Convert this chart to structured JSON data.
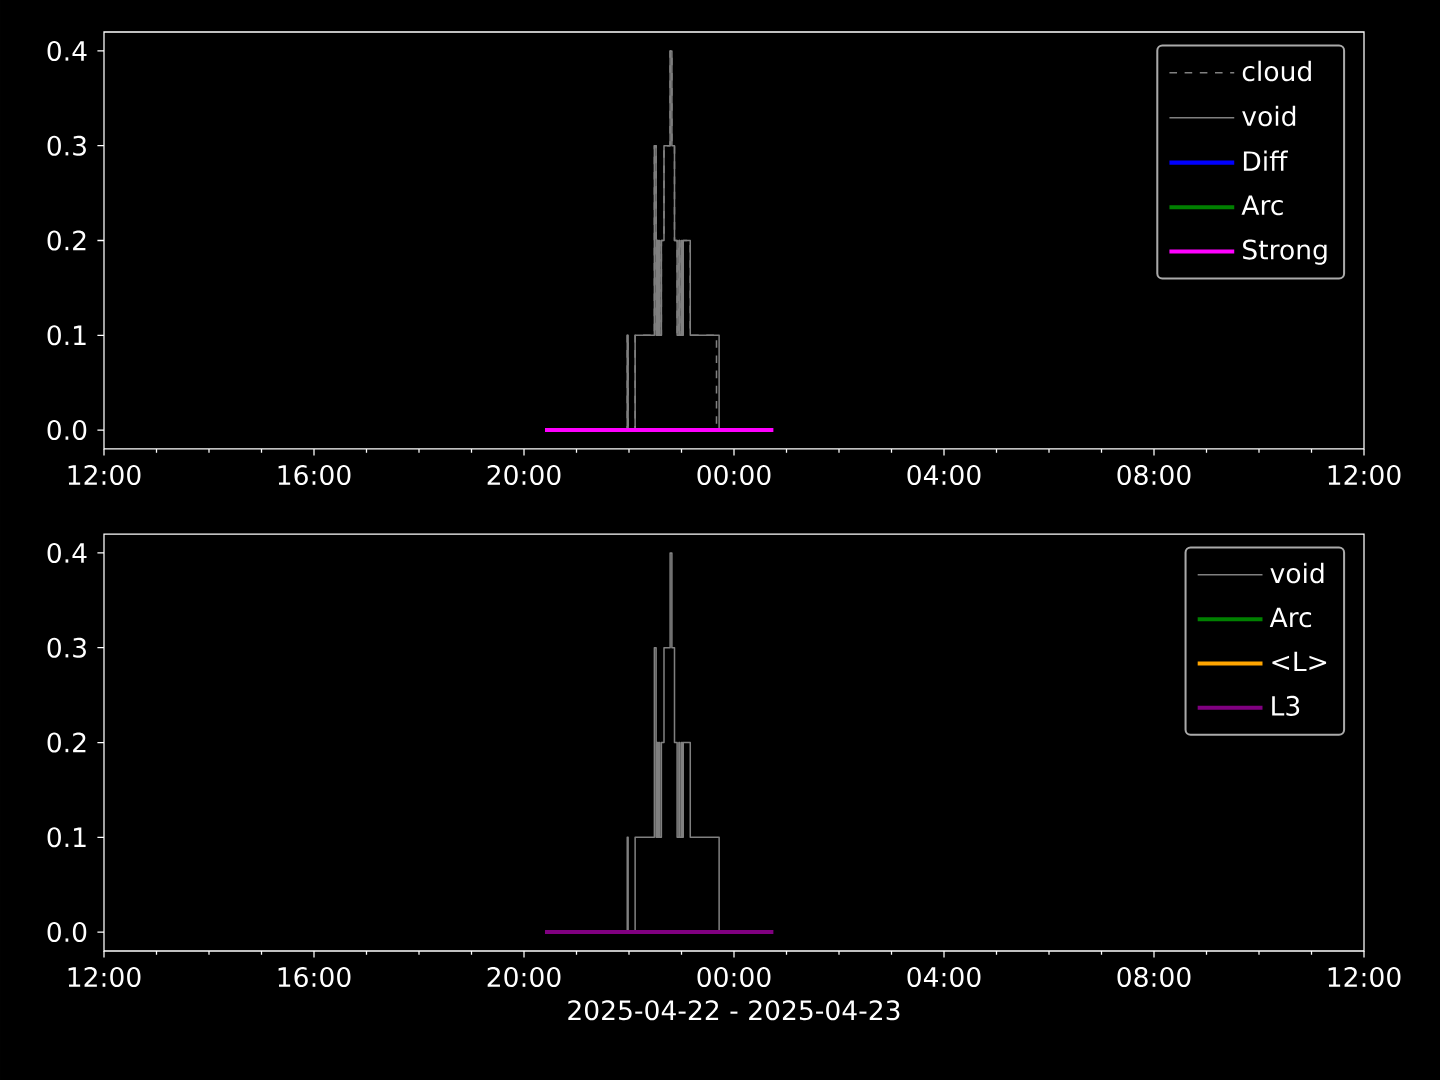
{
  "chart_data": [
    {
      "type": "step",
      "xlim": [
        "2025-04-22T12:00",
        "2025-04-23T12:00"
      ],
      "ylim": [
        -0.02,
        0.42
      ],
      "xticks": [
        {
          "value": "2025-04-22T12:00",
          "label": "12:00"
        },
        {
          "value": "2025-04-22T13:00",
          "label": null
        },
        {
          "value": "2025-04-22T14:00",
          "label": null
        },
        {
          "value": "2025-04-22T15:00",
          "label": null
        },
        {
          "value": "2025-04-22T16:00",
          "label": "16:00"
        },
        {
          "value": "2025-04-22T17:00",
          "label": null
        },
        {
          "value": "2025-04-22T18:00",
          "label": null
        },
        {
          "value": "2025-04-22T19:00",
          "label": null
        },
        {
          "value": "2025-04-22T20:00",
          "label": "20:00"
        },
        {
          "value": "2025-04-22T21:00",
          "label": null
        },
        {
          "value": "2025-04-22T22:00",
          "label": null
        },
        {
          "value": "2025-04-22T23:00",
          "label": null
        },
        {
          "value": "2025-04-23T00:00",
          "label": "00:00"
        },
        {
          "value": "2025-04-23T01:00",
          "label": null
        },
        {
          "value": "2025-04-23T02:00",
          "label": null
        },
        {
          "value": "2025-04-23T03:00",
          "label": null
        },
        {
          "value": "2025-04-23T04:00",
          "label": "04:00"
        },
        {
          "value": "2025-04-23T05:00",
          "label": null
        },
        {
          "value": "2025-04-23T06:00",
          "label": null
        },
        {
          "value": "2025-04-23T07:00",
          "label": null
        },
        {
          "value": "2025-04-23T08:00",
          "label": "08:00"
        },
        {
          "value": "2025-04-23T09:00",
          "label": null
        },
        {
          "value": "2025-04-23T10:00",
          "label": null
        },
        {
          "value": "2025-04-23T11:00",
          "label": null
        },
        {
          "value": "2025-04-23T12:00",
          "label": "12:00"
        }
      ],
      "yticks": [
        {
          "value": 0,
          "label": "0.0"
        },
        {
          "value": 0.1,
          "label": "0.1"
        },
        {
          "value": 0.2,
          "label": "0.2"
        },
        {
          "value": 0.3,
          "label": "0.3"
        },
        {
          "value": 0.4,
          "label": "0.4"
        }
      ],
      "legend": "top right",
      "series": [
        {
          "name": "cloud",
          "color": "#808080",
          "line_style": "dashed",
          "x": [
            "2025-04-22T21:54",
            "2025-04-22T21:58",
            "2025-04-22T21:59",
            "2025-04-22T22:07",
            "2025-04-22T22:29",
            "2025-04-22T22:31",
            "2025-04-22T22:32",
            "2025-04-22T22:33",
            "2025-04-22T22:34",
            "2025-04-22T22:35",
            "2025-04-22T22:37",
            "2025-04-22T22:40",
            "2025-04-22T22:47",
            "2025-04-22T22:49",
            "2025-04-22T22:52",
            "2025-04-22T22:55",
            "2025-04-22T22:57",
            "2025-04-22T22:58",
            "2025-04-22T23:00",
            "2025-04-22T23:01",
            "2025-04-22T23:02",
            "2025-04-22T23:10",
            "2025-04-22T23:40",
            "2025-04-22T23:45"
          ],
          "values": [
            0,
            0.1,
            0,
            0.1,
            0.3,
            0.1,
            0.2,
            0.1,
            0.2,
            0.1,
            0.2,
            0.3,
            0.4,
            0.3,
            0.2,
            0.1,
            0.2,
            0.1,
            0.2,
            0.1,
            0.2,
            0.1,
            0,
            0
          ]
        },
        {
          "name": "void",
          "color": "#808080",
          "x": [
            "2025-04-22T21:54",
            "2025-04-22T21:58",
            "2025-04-22T21:59",
            "2025-04-22T22:07",
            "2025-04-22T22:29",
            "2025-04-22T22:31",
            "2025-04-22T22:32",
            "2025-04-22T22:33",
            "2025-04-22T22:34",
            "2025-04-22T22:35",
            "2025-04-22T22:37",
            "2025-04-22T22:40",
            "2025-04-22T22:47",
            "2025-04-22T22:49",
            "2025-04-22T22:52",
            "2025-04-22T22:55",
            "2025-04-22T22:57",
            "2025-04-22T22:58",
            "2025-04-22T23:00",
            "2025-04-22T23:01",
            "2025-04-22T23:02",
            "2025-04-22T23:10",
            "2025-04-22T23:43",
            "2025-04-22T23:45"
          ],
          "values": [
            0,
            0.1,
            0,
            0.1,
            0.3,
            0.1,
            0.2,
            0.1,
            0.2,
            0.1,
            0.2,
            0.3,
            0.4,
            0.3,
            0.2,
            0.1,
            0.2,
            0.1,
            0.2,
            0.1,
            0.2,
            0.1,
            0,
            0
          ]
        },
        {
          "name": "Diff",
          "color": "#0000ff",
          "type": "line"
        },
        {
          "name": "Arc",
          "color": "#008000",
          "type": "line"
        },
        {
          "name": "Strong",
          "color": "#ff00ff",
          "type": "line",
          "x": [
            "2025-04-22T20:24",
            "2025-04-23T00:45"
          ],
          "values": [
            0,
            0
          ]
        }
      ]
    },
    {
      "type": "step",
      "xlim": [
        "2025-04-22T12:00",
        "2025-04-23T12:00"
      ],
      "ylim": [
        -0.02,
        0.42
      ],
      "xlabel": "2025-04-22 - 2025-04-23",
      "xticks": [
        {
          "value": "2025-04-22T12:00",
          "label": "12:00"
        },
        {
          "value": "2025-04-22T13:00",
          "label": null
        },
        {
          "value": "2025-04-22T14:00",
          "label": null
        },
        {
          "value": "2025-04-22T15:00",
          "label": null
        },
        {
          "value": "2025-04-22T16:00",
          "label": "16:00"
        },
        {
          "value": "2025-04-22T17:00",
          "label": null
        },
        {
          "value": "2025-04-22T18:00",
          "label": null
        },
        {
          "value": "2025-04-22T19:00",
          "label": null
        },
        {
          "value": "2025-04-22T20:00",
          "label": "20:00"
        },
        {
          "value": "2025-04-22T21:00",
          "label": null
        },
        {
          "value": "2025-04-22T22:00",
          "label": null
        },
        {
          "value": "2025-04-22T23:00",
          "label": null
        },
        {
          "value": "2025-04-23T00:00",
          "label": "00:00"
        },
        {
          "value": "2025-04-23T01:00",
          "label": null
        },
        {
          "value": "2025-04-23T02:00",
          "label": null
        },
        {
          "value": "2025-04-23T03:00",
          "label": null
        },
        {
          "value": "2025-04-23T04:00",
          "label": "04:00"
        },
        {
          "value": "2025-04-23T05:00",
          "label": null
        },
        {
          "value": "2025-04-23T06:00",
          "label": null
        },
        {
          "value": "2025-04-23T07:00",
          "label": null
        },
        {
          "value": "2025-04-23T08:00",
          "label": "08:00"
        },
        {
          "value": "2025-04-23T09:00",
          "label": null
        },
        {
          "value": "2025-04-23T10:00",
          "label": null
        },
        {
          "value": "2025-04-23T11:00",
          "label": null
        },
        {
          "value": "2025-04-23T12:00",
          "label": "12:00"
        }
      ],
      "yticks": [
        {
          "value": 0,
          "label": "0.0"
        },
        {
          "value": 0.1,
          "label": "0.1"
        },
        {
          "value": 0.2,
          "label": "0.2"
        },
        {
          "value": 0.3,
          "label": "0.3"
        },
        {
          "value": 0.4,
          "label": "0.4"
        }
      ],
      "legend": "top right",
      "series": [
        {
          "name": "void",
          "color": "#808080",
          "x": [
            "2025-04-22T21:54",
            "2025-04-22T21:58",
            "2025-04-22T21:59",
            "2025-04-22T22:07",
            "2025-04-22T22:29",
            "2025-04-22T22:31",
            "2025-04-22T22:32",
            "2025-04-22T22:33",
            "2025-04-22T22:34",
            "2025-04-22T22:35",
            "2025-04-22T22:37",
            "2025-04-22T22:40",
            "2025-04-22T22:47",
            "2025-04-22T22:49",
            "2025-04-22T22:52",
            "2025-04-22T22:55",
            "2025-04-22T22:57",
            "2025-04-22T22:58",
            "2025-04-22T23:00",
            "2025-04-22T23:01",
            "2025-04-22T23:02",
            "2025-04-22T23:10",
            "2025-04-22T23:43",
            "2025-04-22T23:45"
          ],
          "values": [
            0,
            0.1,
            0,
            0.1,
            0.3,
            0.1,
            0.2,
            0.1,
            0.2,
            0.1,
            0.2,
            0.3,
            0.4,
            0.3,
            0.2,
            0.1,
            0.2,
            0.1,
            0.2,
            0.1,
            0.2,
            0.1,
            0,
            0
          ]
        },
        {
          "name": "Arc",
          "color": "#008000",
          "type": "line"
        },
        {
          "name": "<L>",
          "color": "#ffa500",
          "type": "line"
        },
        {
          "name": "L3",
          "color": "#800080",
          "type": "line",
          "x": [
            "2025-04-22T20:24",
            "2025-04-23T00:45"
          ],
          "values": [
            0,
            0
          ]
        }
      ]
    }
  ]
}
